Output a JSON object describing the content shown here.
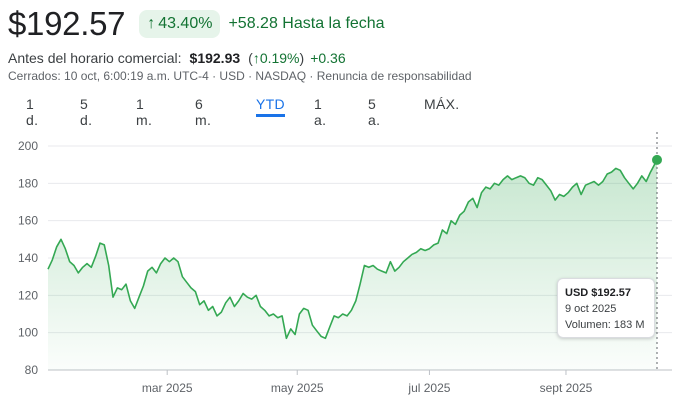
{
  "quote": {
    "price": "$192.57",
    "pct_change": "43.40%",
    "abs_change": "+58.28",
    "period_label": "Hasta la fecha"
  },
  "premarket": {
    "label": "Antes del horario comercial:",
    "price": "$192.93",
    "pct_change": "0.19%",
    "abs_change": "+0.36"
  },
  "meta": "Cerrados: 10 oct, 6:00:19 a.m. UTC-4 · USD · NASDAQ · Renuncia de responsabilidad",
  "tabs": [
    {
      "label": "1 d."
    },
    {
      "label": "5 d."
    },
    {
      "label": "1 m."
    },
    {
      "label": "6 m."
    },
    {
      "label": "YTD"
    },
    {
      "label": "1 a."
    },
    {
      "label": "5 a."
    },
    {
      "label": "MÁX."
    }
  ],
  "active_tab": "YTD",
  "colors": {
    "up_green": "#137333",
    "line_green": "#34a853",
    "badge_bg": "#e6f4ea",
    "accent_blue": "#1a73e8"
  },
  "tooltip": {
    "price": "USD $192.57",
    "date": "9 oct 2025",
    "volume": "Volumen: 183 M"
  },
  "chart_data": {
    "type": "area",
    "title": "",
    "xlabel": "",
    "ylabel": "",
    "ylim": [
      80,
      200
    ],
    "yticks": [
      80,
      100,
      120,
      140,
      160,
      180,
      200
    ],
    "xlim": [
      0,
      281
    ],
    "xticks": [
      {
        "day": 55,
        "label": "mar 2025"
      },
      {
        "day": 115,
        "label": "may 2025"
      },
      {
        "day": 176,
        "label": "jul 2025"
      },
      {
        "day": 239,
        "label": "sept 2025"
      }
    ],
    "grid": true,
    "series": [
      {
        "name": "",
        "points": [
          [
            0,
            134
          ],
          [
            2,
            139
          ],
          [
            4,
            146
          ],
          [
            6,
            150
          ],
          [
            8,
            145
          ],
          [
            10,
            138
          ],
          [
            12,
            136
          ],
          [
            14,
            132
          ],
          [
            16,
            135
          ],
          [
            18,
            137
          ],
          [
            20,
            135
          ],
          [
            22,
            141
          ],
          [
            24,
            148
          ],
          [
            26,
            147
          ],
          [
            28,
            136
          ],
          [
            30,
            119
          ],
          [
            32,
            124
          ],
          [
            34,
            123
          ],
          [
            36,
            126
          ],
          [
            38,
            117
          ],
          [
            40,
            113
          ],
          [
            42,
            119
          ],
          [
            44,
            125
          ],
          [
            46,
            133
          ],
          [
            48,
            135
          ],
          [
            50,
            132
          ],
          [
            52,
            137
          ],
          [
            54,
            140
          ],
          [
            56,
            138
          ],
          [
            58,
            140
          ],
          [
            60,
            138
          ],
          [
            62,
            130
          ],
          [
            64,
            127
          ],
          [
            66,
            124
          ],
          [
            68,
            122
          ],
          [
            70,
            115
          ],
          [
            72,
            117
          ],
          [
            74,
            112
          ],
          [
            76,
            114
          ],
          [
            78,
            109
          ],
          [
            80,
            111
          ],
          [
            82,
            116
          ],
          [
            84,
            119
          ],
          [
            86,
            114
          ],
          [
            88,
            117
          ],
          [
            90,
            121
          ],
          [
            92,
            119
          ],
          [
            94,
            118
          ],
          [
            96,
            120
          ],
          [
            98,
            114
          ],
          [
            100,
            112
          ],
          [
            102,
            109
          ],
          [
            104,
            110
          ],
          [
            106,
            108
          ],
          [
            108,
            109
          ],
          [
            110,
            97
          ],
          [
            112,
            102
          ],
          [
            114,
            99
          ],
          [
            116,
            110
          ],
          [
            118,
            113
          ],
          [
            120,
            112
          ],
          [
            122,
            104
          ],
          [
            124,
            101
          ],
          [
            126,
            98
          ],
          [
            128,
            97
          ],
          [
            130,
            103
          ],
          [
            132,
            109
          ],
          [
            134,
            108
          ],
          [
            136,
            110
          ],
          [
            138,
            109
          ],
          [
            140,
            112
          ],
          [
            142,
            117
          ],
          [
            144,
            126
          ],
          [
            146,
            136
          ],
          [
            148,
            135
          ],
          [
            150,
            136
          ],
          [
            152,
            134
          ],
          [
            154,
            133
          ],
          [
            156,
            132
          ],
          [
            158,
            138
          ],
          [
            160,
            133
          ],
          [
            162,
            135
          ],
          [
            164,
            138
          ],
          [
            166,
            140
          ],
          [
            168,
            142
          ],
          [
            170,
            143
          ],
          [
            172,
            145
          ],
          [
            174,
            144
          ],
          [
            176,
            145
          ],
          [
            178,
            147
          ],
          [
            180,
            148
          ],
          [
            182,
            155
          ],
          [
            184,
            153
          ],
          [
            186,
            160
          ],
          [
            188,
            158
          ],
          [
            190,
            163
          ],
          [
            192,
            165
          ],
          [
            194,
            170
          ],
          [
            196,
            172
          ],
          [
            198,
            167
          ],
          [
            200,
            175
          ],
          [
            202,
            178
          ],
          [
            204,
            177
          ],
          [
            206,
            180
          ],
          [
            208,
            179
          ],
          [
            210,
            182
          ],
          [
            212,
            184
          ],
          [
            214,
            182
          ],
          [
            216,
            183
          ],
          [
            218,
            184
          ],
          [
            220,
            183
          ],
          [
            222,
            180
          ],
          [
            224,
            179
          ],
          [
            226,
            183
          ],
          [
            228,
            182
          ],
          [
            230,
            179
          ],
          [
            232,
            176
          ],
          [
            234,
            171
          ],
          [
            236,
            174
          ],
          [
            238,
            173
          ],
          [
            240,
            175
          ],
          [
            242,
            178
          ],
          [
            244,
            180
          ],
          [
            246,
            174
          ],
          [
            248,
            179
          ],
          [
            250,
            180
          ],
          [
            252,
            181
          ],
          [
            254,
            179
          ],
          [
            256,
            181
          ],
          [
            258,
            185
          ],
          [
            260,
            186
          ],
          [
            262,
            188
          ],
          [
            264,
            187
          ],
          [
            266,
            183
          ],
          [
            268,
            180
          ],
          [
            270,
            177
          ],
          [
            272,
            180
          ],
          [
            274,
            184
          ],
          [
            276,
            181
          ],
          [
            278,
            186
          ],
          [
            281,
            192.57
          ]
        ]
      }
    ],
    "marker": {
      "day": 281,
      "value": 192.57
    }
  }
}
